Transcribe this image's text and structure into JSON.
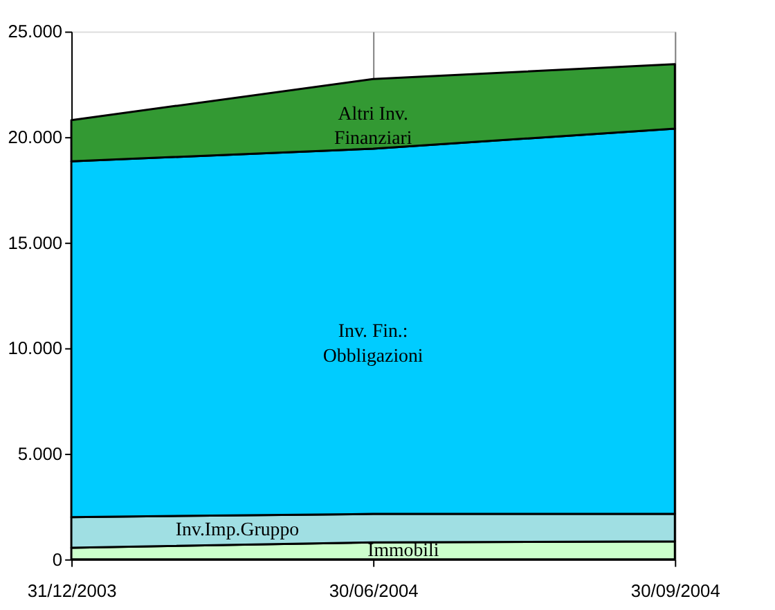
{
  "chart_data": {
    "type": "area",
    "stacked": true,
    "categories": [
      "31/12/2003",
      "30/06/2004",
      "30/09/2004"
    ],
    "series": [
      {
        "name": "Immobili",
        "color": "#ccffcc",
        "values": [
          550,
          800,
          850
        ]
      },
      {
        "name": "Inv.Imp.Gruppo",
        "color": "#a0dfe3",
        "values": [
          1450,
          1350,
          1300
        ]
      },
      {
        "name": "Inv. Fin.:\nObbligazioni",
        "color": "#00ccff",
        "values": [
          16850,
          17300,
          18250
        ]
      },
      {
        "name": "Altri Inv.\nFinanziari",
        "color": "#339933",
        "values": [
          1950,
          3300,
          3050
        ]
      }
    ],
    "ylim": [
      0,
      25000
    ],
    "yticks": [
      {
        "value": 0,
        "label": "0"
      },
      {
        "value": 5000,
        "label": "5.000"
      },
      {
        "value": 10000,
        "label": "10.000"
      },
      {
        "value": 15000,
        "label": "15.000"
      },
      {
        "value": 20000,
        "label": "20.000"
      },
      {
        "value": 25000,
        "label": "25.000"
      }
    ],
    "grid": "x"
  }
}
